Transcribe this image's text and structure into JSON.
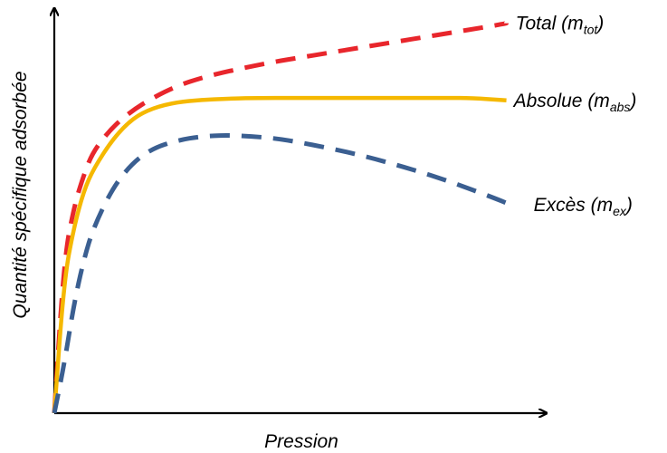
{
  "chart_data": {
    "type": "line",
    "xlabel": "Pression",
    "ylabel": "Quantité spécifique adsorbée",
    "xlim": [
      0,
      100
    ],
    "ylim": [
      0,
      100
    ],
    "grid": false,
    "legend": "none",
    "series": [
      {
        "name": "Total (mtot)",
        "label_main": "Total (m",
        "label_sub": "tot",
        "label_close": ")",
        "color": "#e8262c",
        "dash": "dashed",
        "x": [
          0,
          2,
          4,
          6,
          8,
          12,
          16,
          20,
          25,
          30,
          35,
          40,
          45,
          50,
          55,
          60,
          65,
          70,
          75,
          80,
          85,
          90,
          92
        ],
        "y": [
          0,
          38,
          51,
          59,
          65,
          71,
          75,
          78,
          81,
          83,
          84.5,
          85.8,
          87,
          88,
          89,
          90,
          91,
          92,
          93,
          94,
          95,
          96,
          96.5
        ]
      },
      {
        "name": "Absolue (mabs)",
        "label_main": "Absolue (m",
        "label_sub": "abs",
        "label_close": ")",
        "color": "#f5b800",
        "dash": "solid",
        "x": [
          0,
          2,
          4,
          6,
          8,
          12,
          16,
          20,
          25,
          30,
          35,
          40,
          50,
          60,
          70,
          80,
          85,
          92
        ],
        "y": [
          0,
          33,
          46,
          55,
          60.5,
          68,
          73,
          75.5,
          77,
          77.5,
          77.8,
          78,
          78,
          78,
          78,
          78,
          78,
          77.4
        ]
      },
      {
        "name": "Excès (mex)",
        "label_main": "Excès (m",
        "label_sub": "ex",
        "label_close": ")",
        "color": "#3b5f91",
        "dash": "dashed",
        "x": [
          0,
          2,
          4,
          6,
          8,
          12,
          16,
          20,
          25,
          30,
          35,
          40,
          45,
          50,
          55,
          60,
          65,
          70,
          75,
          80,
          85,
          90,
          92
        ],
        "y": [
          0,
          12,
          27,
          38,
          46,
          56,
          62,
          65.5,
          67.5,
          68.5,
          68.8,
          68.5,
          68,
          67,
          65.8,
          64.5,
          63,
          61.3,
          59.5,
          57.5,
          55.3,
          53,
          52
        ]
      }
    ]
  }
}
